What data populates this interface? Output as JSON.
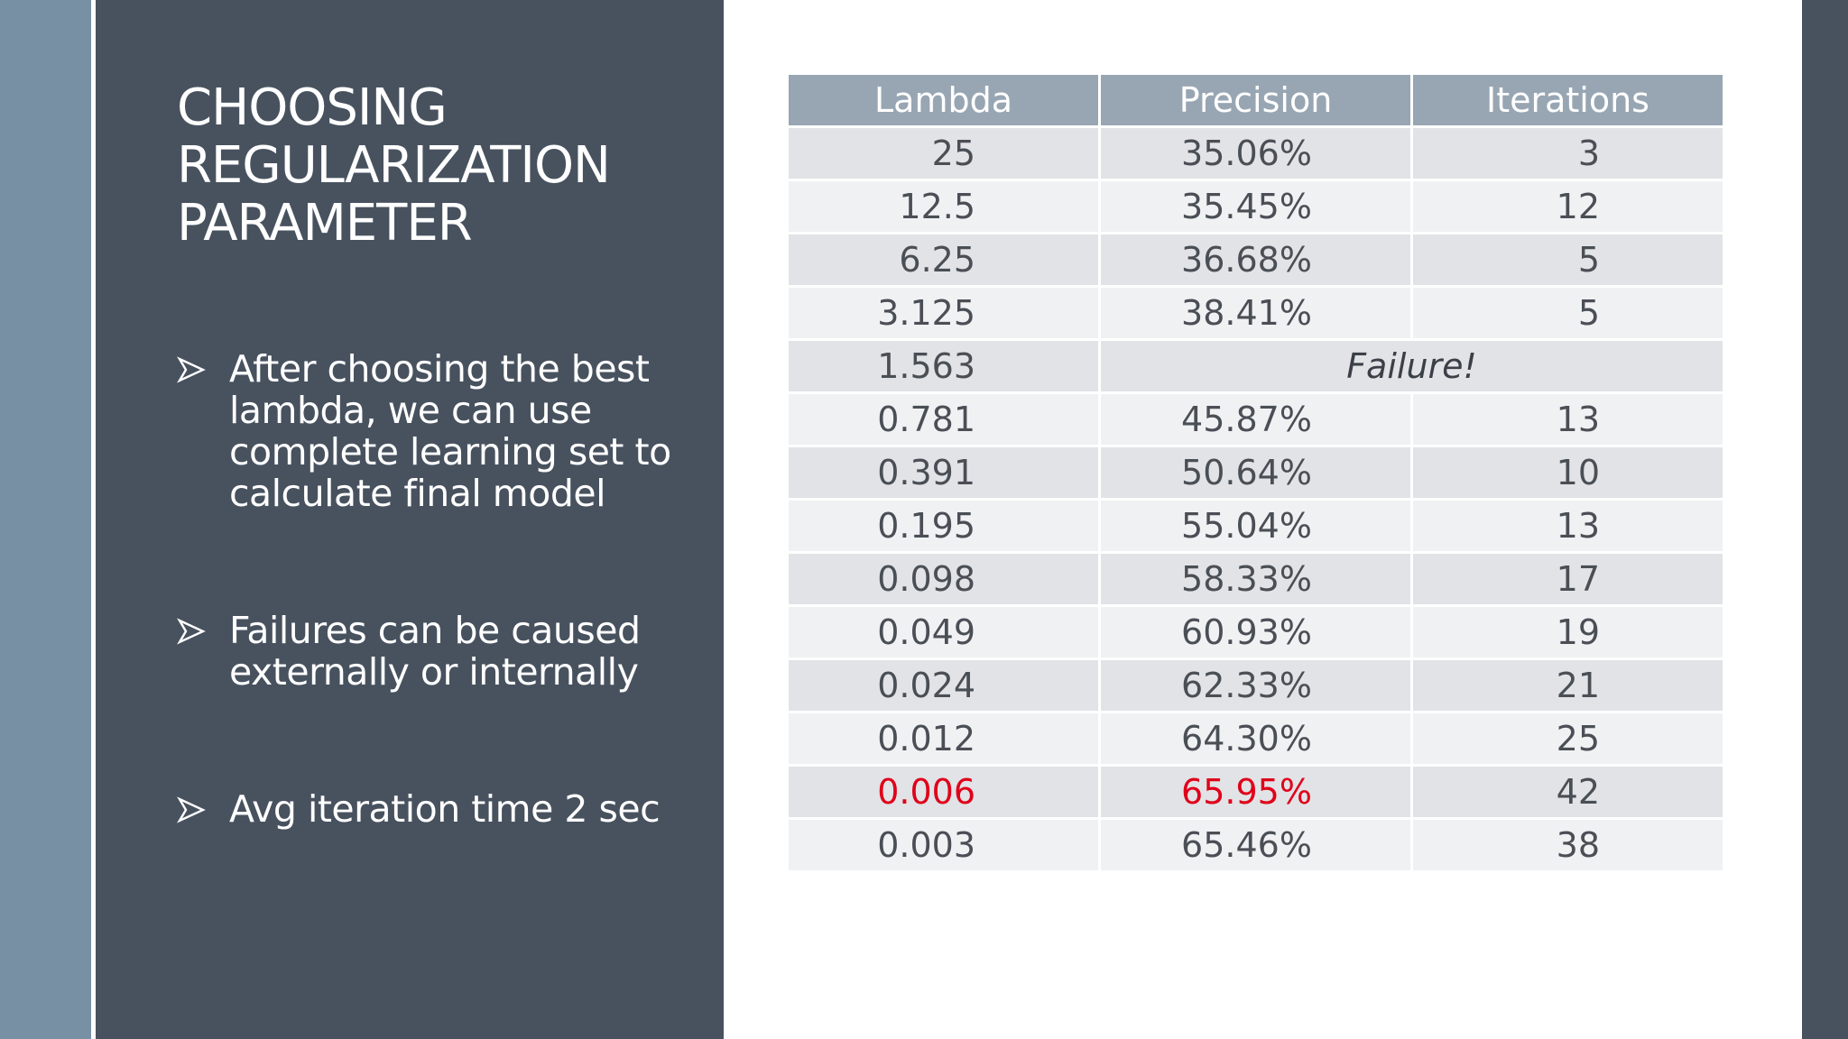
{
  "slide": {
    "title": "CHOOSING\nREGULARIZATION\nPARAMETER",
    "bullets": [
      "After choosing the best\nlambda, we can use\ncomplete learning set to\ncalculate final model",
      "Failures can be caused\nexternally or internally",
      "Avg iteration time 2 sec"
    ],
    "bullet_icon": "arrowhead-bullet-icon"
  },
  "table": {
    "headers": [
      "Lambda",
      "Precision",
      "Iterations"
    ],
    "rows": [
      {
        "lambda": "25",
        "precision": "35.06%",
        "iterations": "3"
      },
      {
        "lambda": "12.5",
        "precision": "35.45%",
        "iterations": "12"
      },
      {
        "lambda": "6.25",
        "precision": "36.68%",
        "iterations": "5"
      },
      {
        "lambda": "3.125",
        "precision": "38.41%",
        "iterations": "5"
      },
      {
        "lambda": "1.563",
        "failure": "Failure!"
      },
      {
        "lambda": "0.781",
        "precision": "45.87%",
        "iterations": "13"
      },
      {
        "lambda": "0.391",
        "precision": "50.64%",
        "iterations": "10"
      },
      {
        "lambda": "0.195",
        "precision": "55.04%",
        "iterations": "13"
      },
      {
        "lambda": "0.098",
        "precision": "58.33%",
        "iterations": "17"
      },
      {
        "lambda": "0.049",
        "precision": "60.93%",
        "iterations": "19"
      },
      {
        "lambda": "0.024",
        "precision": "62.33%",
        "iterations": "21"
      },
      {
        "lambda": "0.012",
        "precision": "64.30%",
        "iterations": "25"
      },
      {
        "lambda": "0.006",
        "precision": "65.95%",
        "iterations": "42",
        "highlight": true
      },
      {
        "lambda": "0.003",
        "precision": "65.46%",
        "iterations": "38"
      }
    ]
  },
  "colors": {
    "panel": "#48525f",
    "accent_strip": "#7890a4",
    "table_header": "#98a6b3",
    "highlight": "#e0001a"
  }
}
